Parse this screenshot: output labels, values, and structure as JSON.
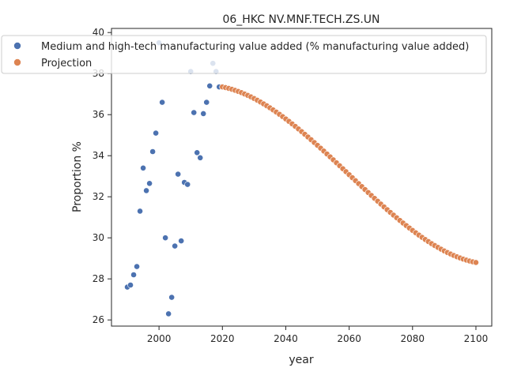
{
  "chart_data": {
    "type": "scatter",
    "title": "06_HKC NV.MNF.TECH.ZS.UN",
    "xlabel": "year",
    "ylabel": "Proportion %",
    "xlim": [
      1985,
      2105
    ],
    "ylim": [
      25.7,
      40.2
    ],
    "xticks": [
      2000,
      2020,
      2040,
      2060,
      2080,
      2100
    ],
    "yticks": [
      26,
      28,
      30,
      32,
      34,
      36,
      38,
      40
    ],
    "grid": false,
    "legend_position": "top-left",
    "series": [
      {
        "name": "Medium and high-tech manufacturing value added (% manufacturing value added)",
        "color": "#4c72b0",
        "x": [
          1990,
          1991,
          1992,
          1993,
          1994,
          1995,
          1996,
          1997,
          1998,
          1999,
          2000,
          2001,
          2002,
          2003,
          2004,
          2005,
          2006,
          2007,
          2008,
          2009,
          2010,
          2011,
          2012,
          2013,
          2014,
          2015,
          2016,
          2017,
          2018,
          2019,
          2020
        ],
        "y": [
          27.6,
          27.7,
          28.2,
          28.6,
          31.3,
          33.4,
          32.3,
          32.65,
          34.2,
          35.1,
          39.5,
          36.6,
          30.0,
          26.3,
          27.1,
          29.6,
          33.1,
          29.85,
          32.7,
          32.6,
          38.1,
          36.1,
          34.15,
          33.9,
          36.05,
          36.6,
          37.4,
          38.5,
          38.1,
          37.35,
          37.35
        ]
      },
      {
        "name": "Projection",
        "color": "#dd8452",
        "x_start": 2020,
        "x_end": 2100,
        "y_start": 37.35,
        "y_end": 28.8,
        "curve": "smooth decline"
      }
    ]
  }
}
